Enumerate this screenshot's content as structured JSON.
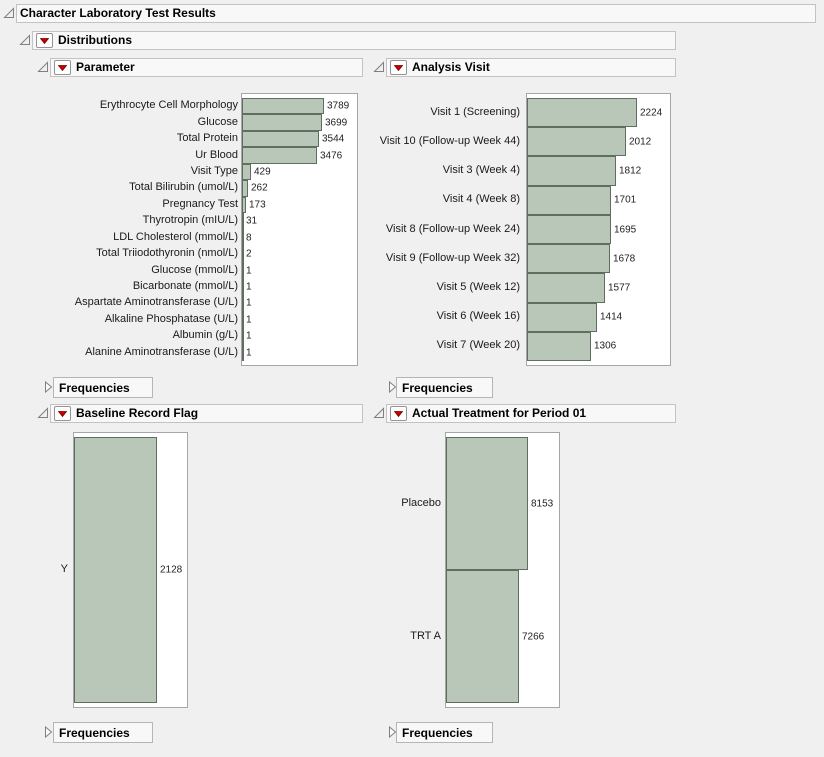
{
  "titles": {
    "root": "Character Laboratory Test Results",
    "distributions": "Distributions"
  },
  "labels": {
    "frequencies": "Frequencies"
  },
  "icons": {
    "disclosure_open": "open-triangle",
    "disclosure_closed": "closed-triangle",
    "red_triangle_menu": "red-triangle"
  },
  "colors": {
    "background": "#f0f0f0",
    "bar_fill": "#b9c7b8",
    "bar_border": "#5f6e5f",
    "red_triangle": "#c40000",
    "frame_border": "#a6a6a6",
    "header_bg": "#f8f8f8"
  },
  "chart_data": [
    {
      "type": "bar",
      "orientation": "horizontal",
      "title": "Parameter",
      "categories": [
        "Erythrocyte Cell Morphology",
        "Glucose",
        "Total Protein",
        "Ur Blood",
        "Visit Type",
        "Total Bilirubin (umol/L)",
        "Pregnancy Test",
        "Thyrotropin (mIU/L)",
        "LDL Cholesterol (mmol/L)",
        "Total Triiodothyronin (nmol/L)",
        "Glucose (mmol/L)",
        "Bicarbonate (mmol/L)",
        "Aspartate Aminotransferase (U/L)",
        "Alkaline Phosphatase (U/L)",
        "Albumin (g/L)",
        "Alanine Aminotransferase (U/L)"
      ],
      "values": [
        3789,
        3699,
        3544,
        3476,
        429,
        262,
        173,
        31,
        8,
        2,
        1,
        1,
        1,
        1,
        1,
        1
      ],
      "xlim": [
        0,
        5300
      ],
      "value_labels": true,
      "grid": false,
      "legend": false
    },
    {
      "type": "bar",
      "orientation": "horizontal",
      "title": "Analysis Visit",
      "categories": [
        "Visit 1 (Screening)",
        "Visit 10 (Follow-up Week 44)",
        "Visit 3 (Week 4)",
        "Visit 4 (Week 8)",
        "Visit 8 (Follow-up Week 24)",
        "Visit 9 (Follow-up Week 32)",
        "Visit 5 (Week 12)",
        "Visit 6 (Week 16)",
        "Visit 7 (Week 20)"
      ],
      "values": [
        2224,
        2012,
        1812,
        1701,
        1695,
        1678,
        1577,
        1414,
        1306
      ],
      "xlim": [
        0,
        2900
      ],
      "value_labels": true,
      "grid": false,
      "legend": false
    },
    {
      "type": "bar",
      "orientation": "horizontal",
      "title": "Baseline Record Flag",
      "categories": [
        "Y"
      ],
      "values": [
        2128
      ],
      "xlim": [
        0,
        2900
      ],
      "value_labels": true,
      "grid": false,
      "legend": false
    },
    {
      "type": "bar",
      "orientation": "horizontal",
      "title": "Actual Treatment for Period 01",
      "categories": [
        "Placebo",
        "TRT A"
      ],
      "values": [
        8153,
        7266
      ],
      "xlim": [
        0,
        11200
      ],
      "value_labels": true,
      "grid": false,
      "legend": false
    }
  ]
}
